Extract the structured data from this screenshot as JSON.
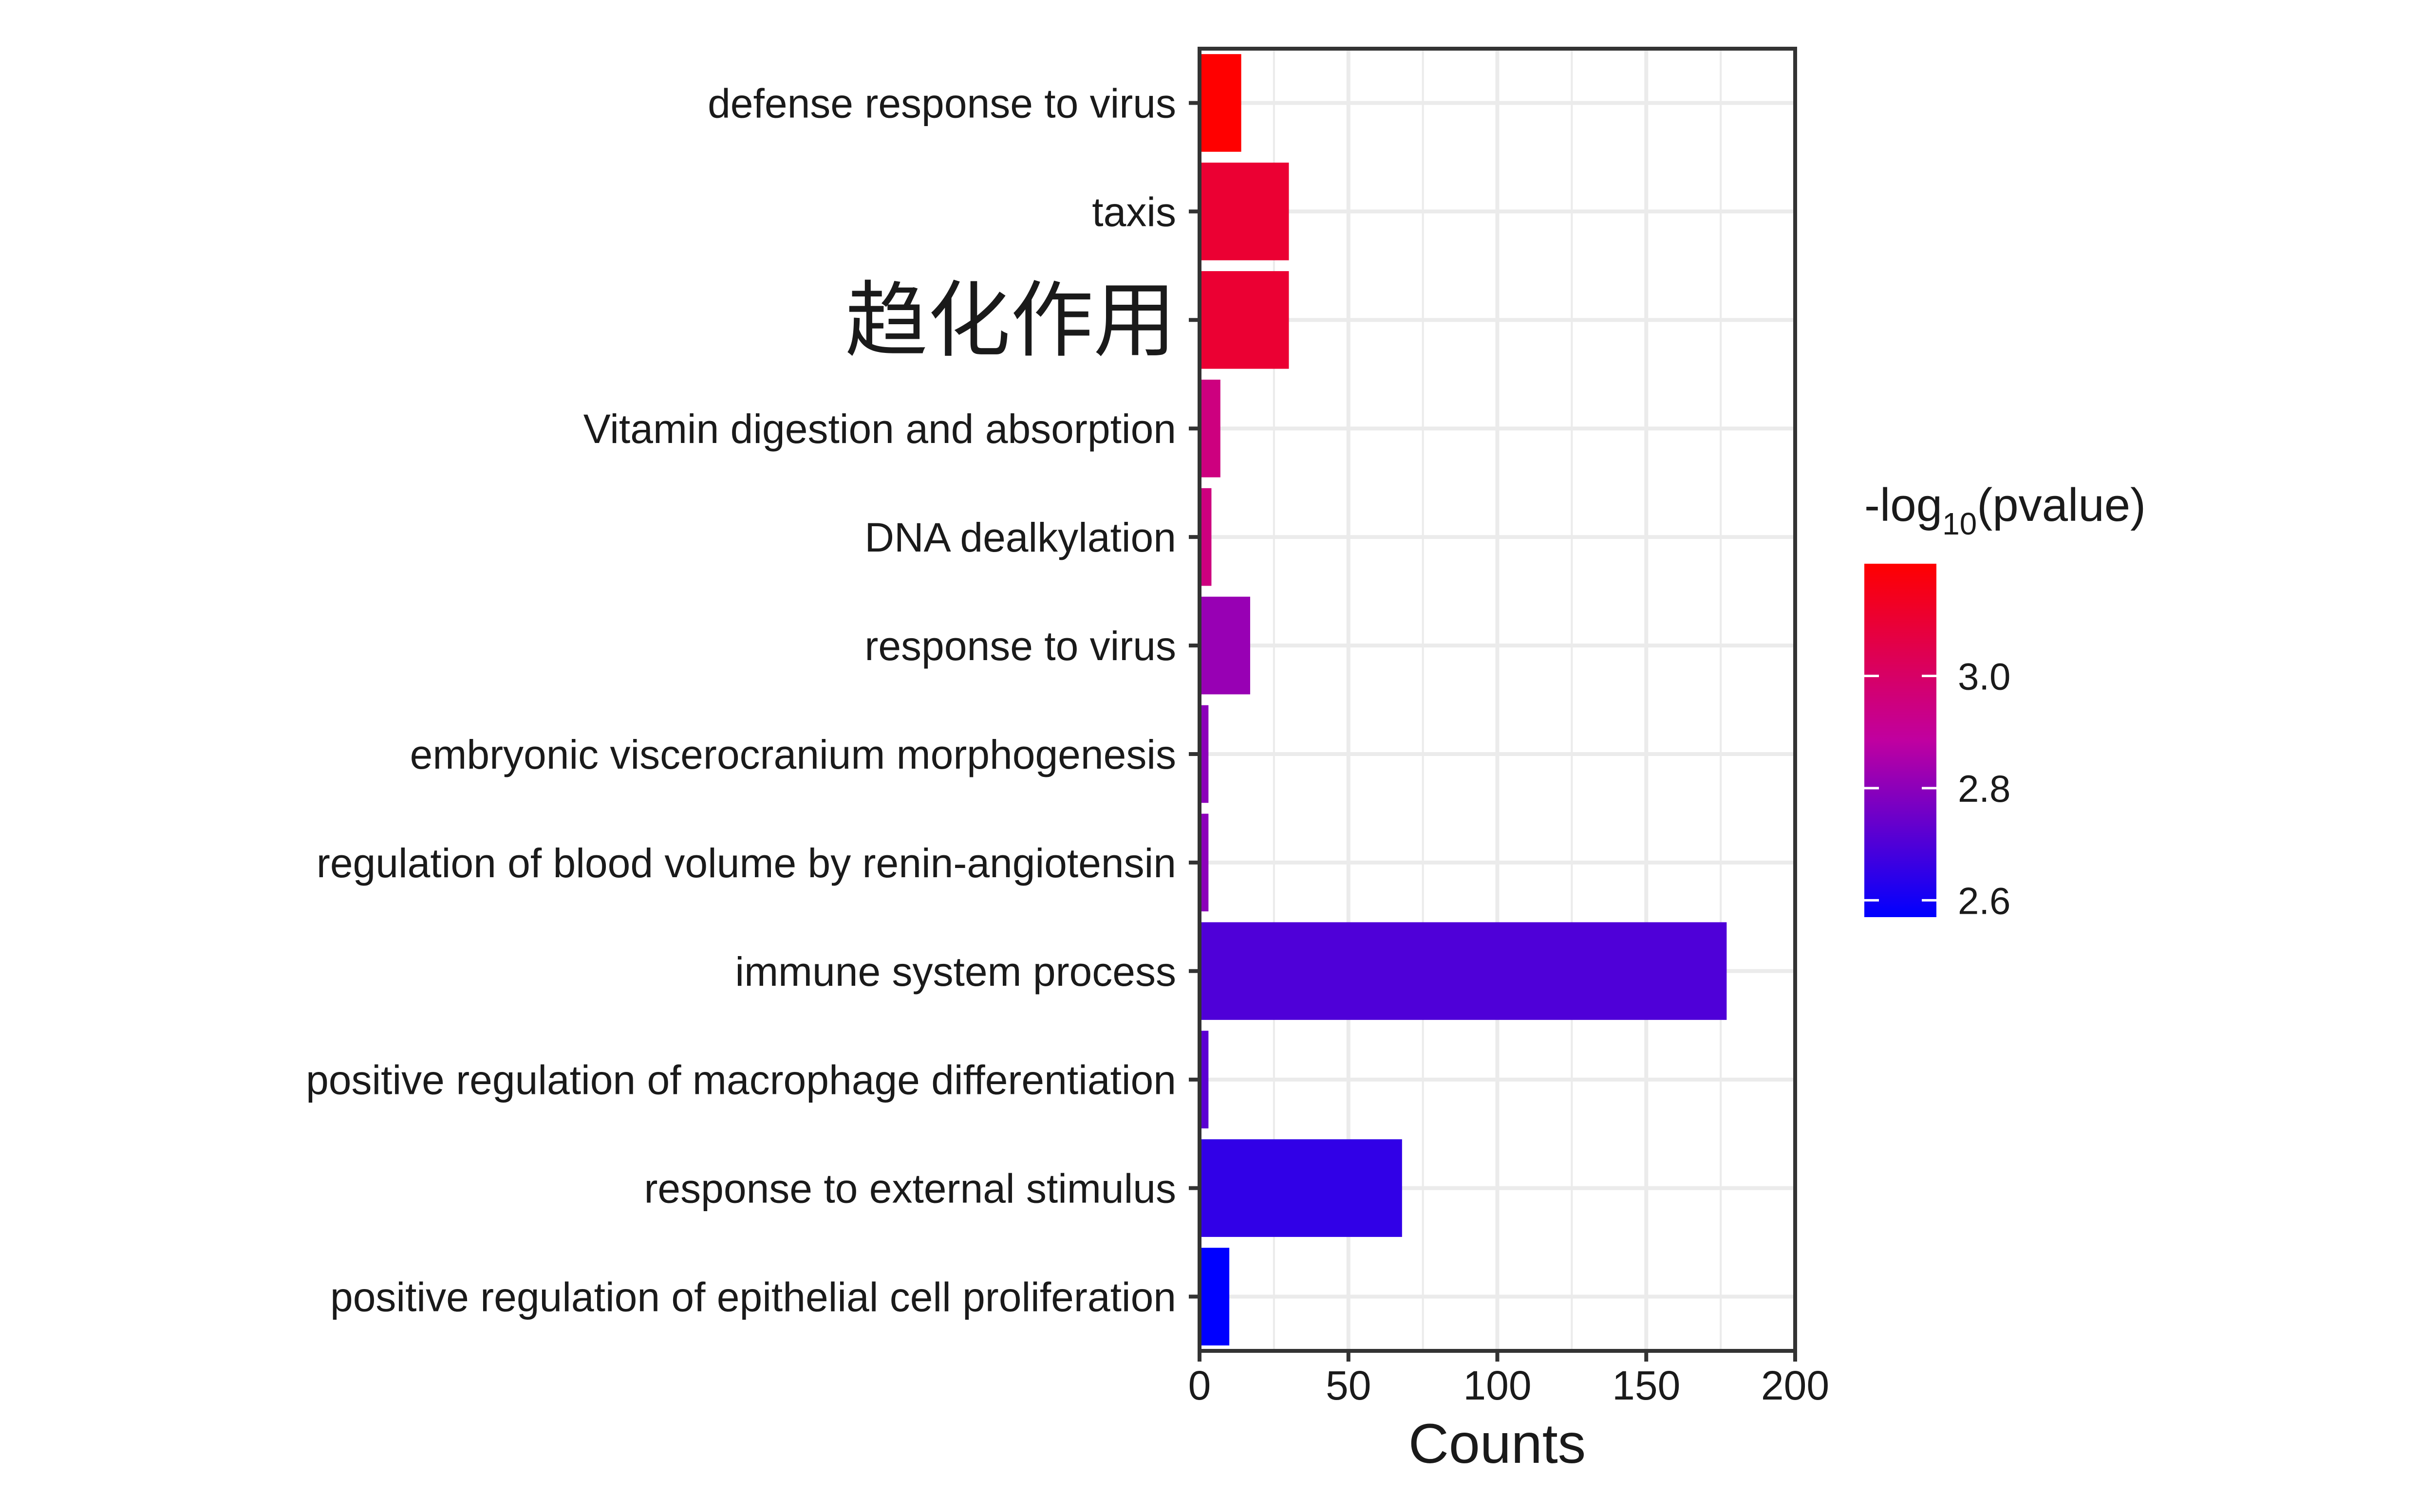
{
  "chart_data": {
    "type": "bar",
    "orientation": "horizontal",
    "categories": [
      "defense response to virus",
      "taxis",
      "趋化作用",
      "Vitamin digestion and absorption",
      "DNA dealkylation",
      "response to virus",
      "embryonic viscerocranium morphogenesis",
      "regulation of blood volume by renin-angiotensin",
      "immune system process",
      "positive regulation of macrophage differentiation",
      "response to external stimulus",
      "positive regulation of epithelial cell proliferation"
    ],
    "values": [
      14,
      30,
      30,
      7,
      4,
      17,
      3,
      3,
      177,
      3,
      68,
      10
    ],
    "neglog10_pvalue": [
      3.2,
      3.1,
      3.1,
      2.95,
      2.95,
      2.82,
      2.8,
      2.8,
      2.7,
      2.72,
      2.65,
      2.57
    ],
    "xlabel": "Counts",
    "xlim": [
      0,
      200
    ],
    "xticks": [
      0,
      50,
      100,
      150,
      200
    ],
    "grid": true,
    "legend": {
      "title_prefix": "-log",
      "title_sub": "10",
      "title_suffix": "(pvalue)",
      "placement": "right",
      "ticks": [
        "3.0",
        "2.8",
        "2.6"
      ],
      "tick_values": [
        3.0,
        2.8,
        2.6
      ],
      "range": [
        2.57,
        3.2
      ],
      "low_color": "#0000ff",
      "high_color": "#ff0000"
    }
  }
}
